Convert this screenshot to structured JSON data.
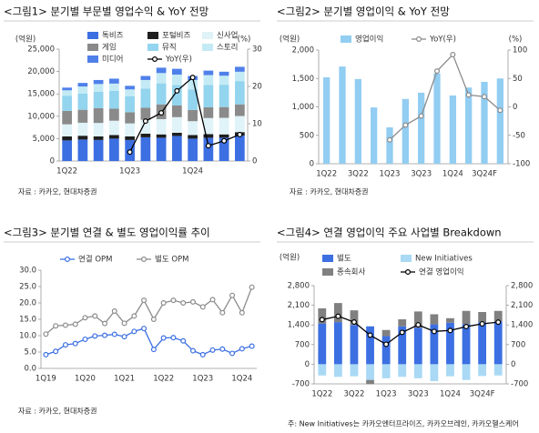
{
  "chart_data": [
    {
      "type": "bar",
      "title": "<그림1> 분기별 부문별 영업수익 & YoY 전망",
      "note": "자료 : 카카오, 현대차증권",
      "y_label": "(억원)",
      "y2_label": "(%)",
      "categories": [
        "1Q22",
        null,
        null,
        null,
        "1Q23",
        null,
        null,
        null,
        "1Q24",
        null,
        null,
        null
      ],
      "series": [
        {
          "name": "톡비즈",
          "color": "#3c6fe2",
          "values": [
            4600,
            4800,
            4700,
            5000,
            4700,
            5300,
            5200,
            5600,
            5000,
            5200,
            5200,
            5700
          ]
        },
        {
          "name": "포털비즈",
          "color": "#1e1e1e",
          "values": [
            900,
            850,
            800,
            800,
            800,
            800,
            750,
            700,
            800,
            800,
            750,
            750
          ]
        },
        {
          "name": "신사업",
          "color": "#dff3f8",
          "values": [
            2700,
            2900,
            3000,
            3200,
            2900,
            3100,
            3400,
            3500,
            3100,
            3600,
            3700,
            3600
          ]
        },
        {
          "name": "게임",
          "color": "#8a8a8a",
          "values": [
            3000,
            2900,
            3300,
            2700,
            2500,
            2700,
            3300,
            2600,
            2500,
            2400,
            2400,
            2600
          ]
        },
        {
          "name": "뮤직",
          "color": "#93d4ee",
          "values": [
            3400,
            3600,
            3700,
            4000,
            3600,
            4300,
            4700,
            4600,
            4600,
            5000,
            5000,
            5200
          ]
        },
        {
          "name": "스토리",
          "color": "#c4ebf5",
          "values": [
            1200,
            1600,
            1700,
            1600,
            1500,
            1900,
            2300,
            2300,
            2100,
            2200,
            2000,
            2100
          ]
        },
        {
          "name": "미디어",
          "color": "#4f80ea",
          "values": [
            600,
            800,
            900,
            1100,
            800,
            900,
            1200,
            1300,
            900,
            1000,
            900,
            1100
          ]
        },
        {
          "name": "YoY(우)",
          "type": "line",
          "axis": "y2",
          "color": "#000000",
          "values": [
            null,
            null,
            null,
            null,
            2.4,
            10.7,
            12.9,
            18.8,
            22.4,
            4.1,
            5.4,
            7.1
          ]
        }
      ],
      "ylim": [
        0,
        25000
      ],
      "yticks": [
        0,
        {
          "value": 5000,
          "label": "5,000"
        },
        {
          "value": 10000,
          "label": "10,000"
        },
        {
          "value": 15000,
          "label": "15,000"
        },
        {
          "value": 20000,
          "label": "20,000"
        },
        {
          "value": 25000,
          "label": "25,000"
        }
      ],
      "y2lim": [
        0,
        30
      ],
      "y2ticks": [
        0,
        10,
        20,
        30
      ]
    },
    {
      "type": "bar",
      "title": "<그림2> 분기별 영업이익 & YoY 전망",
      "note": "자료 : 카카오, 현대차증권",
      "y_label": "(억원)",
      "y2_label": "(%)",
      "categories": [
        "1Q22",
        null,
        "3Q22",
        null,
        "1Q23",
        null,
        "3Q23",
        null,
        "1Q24",
        null,
        "3Q24F",
        null
      ],
      "series": [
        {
          "name": "영업이익",
          "color": "#92cdf2",
          "values": [
            1520,
            1710,
            1490,
            990,
            640,
            1140,
            1250,
            1590,
            1200,
            1340,
            1440,
            1500
          ]
        },
        {
          "name": "YoY(우)",
          "type": "line",
          "axis": "y2",
          "color": "#8c8c8c",
          "values": [
            null,
            null,
            null,
            null,
            -58,
            -32,
            -16,
            63,
            92,
            21,
            18,
            -6
          ]
        }
      ],
      "ylim": [
        0,
        2000
      ],
      "yticks": [
        0,
        500,
        {
          "value": 1000,
          "label": "1,000"
        },
        {
          "value": 1500,
          "label": "1,500"
        },
        {
          "value": 2000,
          "label": "2,000"
        }
      ],
      "y2lim": [
        -100,
        100
      ],
      "y2ticks": [
        -100,
        -50,
        0,
        50,
        100
      ]
    },
    {
      "type": "line",
      "title": "<그림3> 분기별 연결 & 별도 영업이익률 추이",
      "note": "자료 : 카카오, 현대차증권",
      "categories": [
        "1Q19",
        null,
        null,
        null,
        "1Q20",
        null,
        null,
        null,
        "1Q21",
        null,
        null,
        null,
        "1Q22",
        null,
        null,
        null,
        "1Q23",
        null,
        null,
        null,
        "1Q24",
        null
      ],
      "series": [
        {
          "name": "연결 OPM",
          "color": "#3c6fe2",
          "values": [
            4.2,
            5.2,
            7.2,
            7.6,
            8.9,
            9.9,
            10.1,
            10.4,
            9.7,
            11.3,
            12.2,
            5.8,
            9.3,
            9.4,
            8.4,
            5.4,
            4.2,
            5.6,
            5.9,
            4.6,
            6.0,
            6.8
          ]
        },
        {
          "name": "별도 OPM",
          "color": "#8c8c8c",
          "values": [
            10.5,
            13.0,
            13.2,
            13.5,
            15.5,
            16.0,
            13.7,
            17.5,
            13.8,
            16.0,
            20.8,
            15.0,
            20.0,
            20.8,
            20.0,
            20.3,
            18.8,
            21.0,
            17.0,
            22.3,
            17.0,
            24.8
          ]
        }
      ],
      "ylim": [
        0,
        30
      ],
      "yticks": [
        {
          "value": 0,
          "label": "0.0"
        },
        {
          "value": 5,
          "label": "5.0"
        },
        {
          "value": 10,
          "label": "10.0"
        },
        {
          "value": 15,
          "label": "15.0"
        },
        {
          "value": 20,
          "label": "20.0"
        },
        {
          "value": 25,
          "label": "25.0"
        },
        {
          "value": 30,
          "label": "30.0"
        }
      ]
    },
    {
      "type": "bar",
      "title": "<그림4> 연결 영업이익 주요 사업별 Breakdown",
      "note": "주: New Initiatives는 카카오엔터프라이즈, 카카오브레인, 카카오헬스케어",
      "y_label": "(억원)",
      "categories": [
        "1Q22",
        null,
        "3Q22",
        null,
        "1Q23",
        null,
        "3Q23",
        null,
        "1Q24",
        null,
        "3Q24F",
        null
      ],
      "series": [
        {
          "name": "별도",
          "color": "#3c6fe2",
          "values": [
            1450,
            1500,
            1400,
            1350,
            1000,
            1350,
            1300,
            1420,
            1480,
            1430,
            1500,
            1520
          ]
        },
        {
          "name": "New Initiatives",
          "color": "#a9d9f5",
          "values": [
            -400,
            -450,
            -430,
            -560,
            -500,
            -450,
            -500,
            -600,
            -430,
            -560,
            -420,
            -400
          ]
        },
        {
          "name": "종속회사",
          "color": "#808080",
          "values": [
            540,
            680,
            520,
            -150,
            220,
            250,
            580,
            360,
            160,
            470,
            360,
            380
          ]
        },
        {
          "name": "연결 영업이익",
          "type": "line",
          "color": "#000000",
          "values": [
            1587,
            1710,
            1503,
            1037,
            711,
            1135,
            1403,
            1169,
            1203,
            1340,
            1440,
            1500
          ]
        }
      ],
      "ylim": [
        -700,
        2800
      ],
      "yticks": [
        -700,
        0,
        700,
        {
          "value": 1400,
          "label": "1,400"
        },
        {
          "value": 2100,
          "label": "2,100"
        },
        {
          "value": 2800,
          "label": "2,800"
        }
      ],
      "y2lim": [
        -700,
        2800
      ],
      "y2ticks": [
        -700,
        0,
        700,
        {
          "value": 1400,
          "label": "1,400"
        },
        {
          "value": 2100,
          "label": "2,100"
        },
        {
          "value": 2800,
          "label": "2,800"
        }
      ]
    }
  ]
}
